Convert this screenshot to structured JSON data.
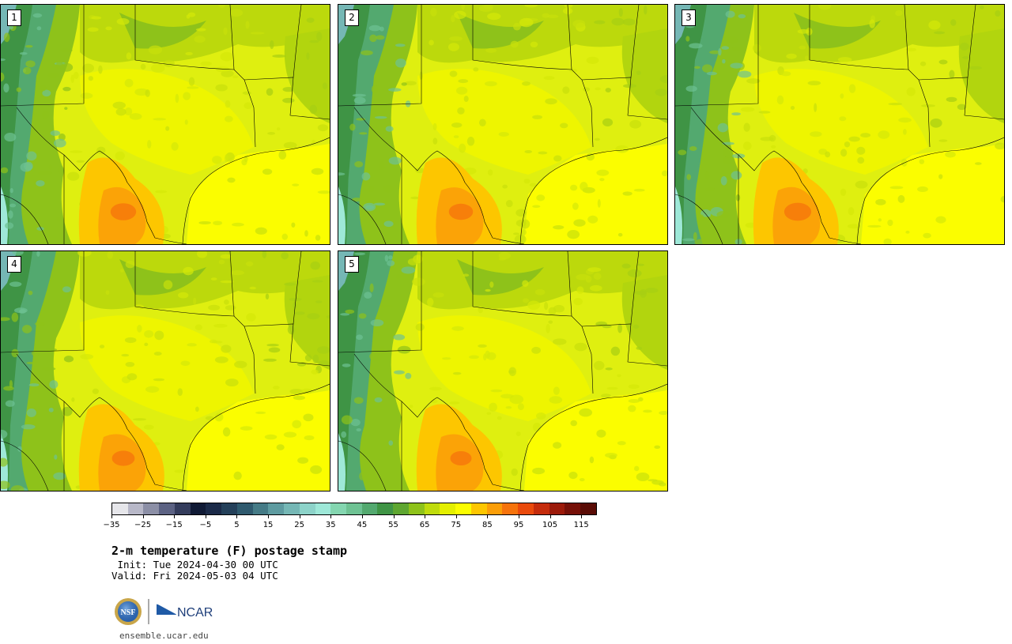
{
  "panels": [
    {
      "label": "1",
      "hot": 0.9,
      "cool": 1.0
    },
    {
      "label": "2",
      "hot": 0.85,
      "cool": 1.05
    },
    {
      "label": "3",
      "hot": 0.95,
      "cool": 0.95
    },
    {
      "label": "4",
      "hot": 0.8,
      "cool": 1.0
    },
    {
      "label": "5",
      "hot": 0.75,
      "cool": 1.1
    }
  ],
  "colorbar": {
    "colors": [
      "#e6e6ea",
      "#b8b8c8",
      "#8c8fa6",
      "#5c6283",
      "#343c5c",
      "#101a35",
      "#1b2a48",
      "#24405a",
      "#2f5a6e",
      "#457b86",
      "#5e9ba0",
      "#75b7b5",
      "#8dd3c9",
      "#9ee8d8",
      "#84d6b0",
      "#6ec293",
      "#53a96f",
      "#3f9445",
      "#5ea630",
      "#8ec21a",
      "#bfdb0c",
      "#e4ef00",
      "#fbfd00",
      "#fdc600",
      "#fb9e08",
      "#f6730c",
      "#ea4a0c",
      "#c52c0c",
      "#9c1a0a",
      "#761008",
      "#5a0c06"
    ],
    "min": -35,
    "max": 120,
    "tick_values": [
      -35,
      -25,
      -15,
      -5,
      5,
      15,
      25,
      35,
      45,
      55,
      65,
      75,
      85,
      95,
      105,
      115
    ],
    "tick_labels": [
      "−35",
      "−25",
      "−15",
      "−5",
      "5",
      "15",
      "25",
      "35",
      "45",
      "55",
      "65",
      "75",
      "85",
      "95",
      "105",
      "115"
    ]
  },
  "title": "2-m temperature (F) postage stamp",
  "init": " Init: Tue 2024-04-30 00 UTC",
  "valid": "Valid: Fri 2024-05-03 04 UTC",
  "logos": {
    "nsf": "NSF",
    "ncar": "NCAR"
  },
  "site": "ensemble.ucar.edu"
}
